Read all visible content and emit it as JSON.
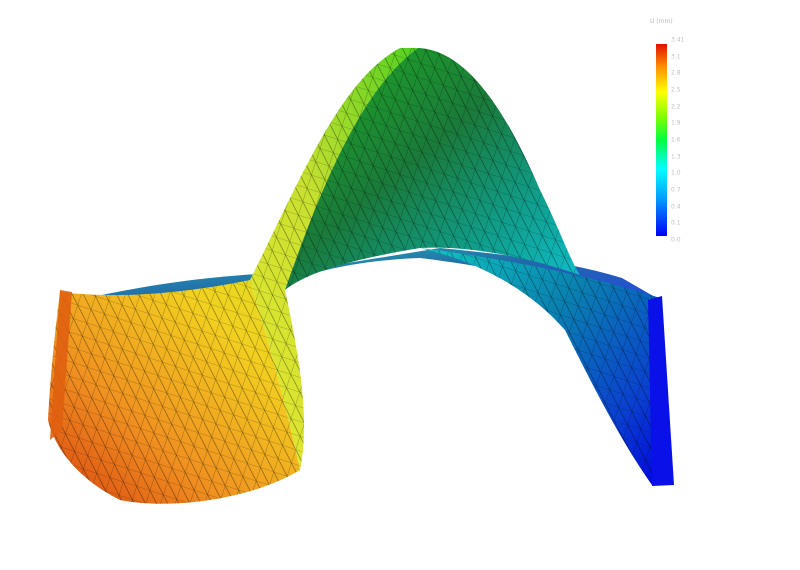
{
  "legend": {
    "title": "U (mm)",
    "ticks": [
      "3.41",
      "3.1",
      "2.8",
      "2.5",
      "2.2",
      "1.9",
      "1.6",
      "1.3",
      "1.0",
      "0.7",
      "0.4",
      "0.1",
      "0.0"
    ],
    "colors": [
      "#0000ff",
      "#0080ff",
      "#00ffff",
      "#00ff80",
      "#00ff00",
      "#80ff00",
      "#ffff00",
      "#ffb000",
      "#ff4000",
      "#e01000"
    ]
  },
  "surface": {
    "description_colors": {
      "left_wing": "#e0901a",
      "ridge_front": "#f0e020",
      "peak": "#2a9a20",
      "right_wing": "#1a40e0"
    },
    "mesh_color": "#000000"
  }
}
